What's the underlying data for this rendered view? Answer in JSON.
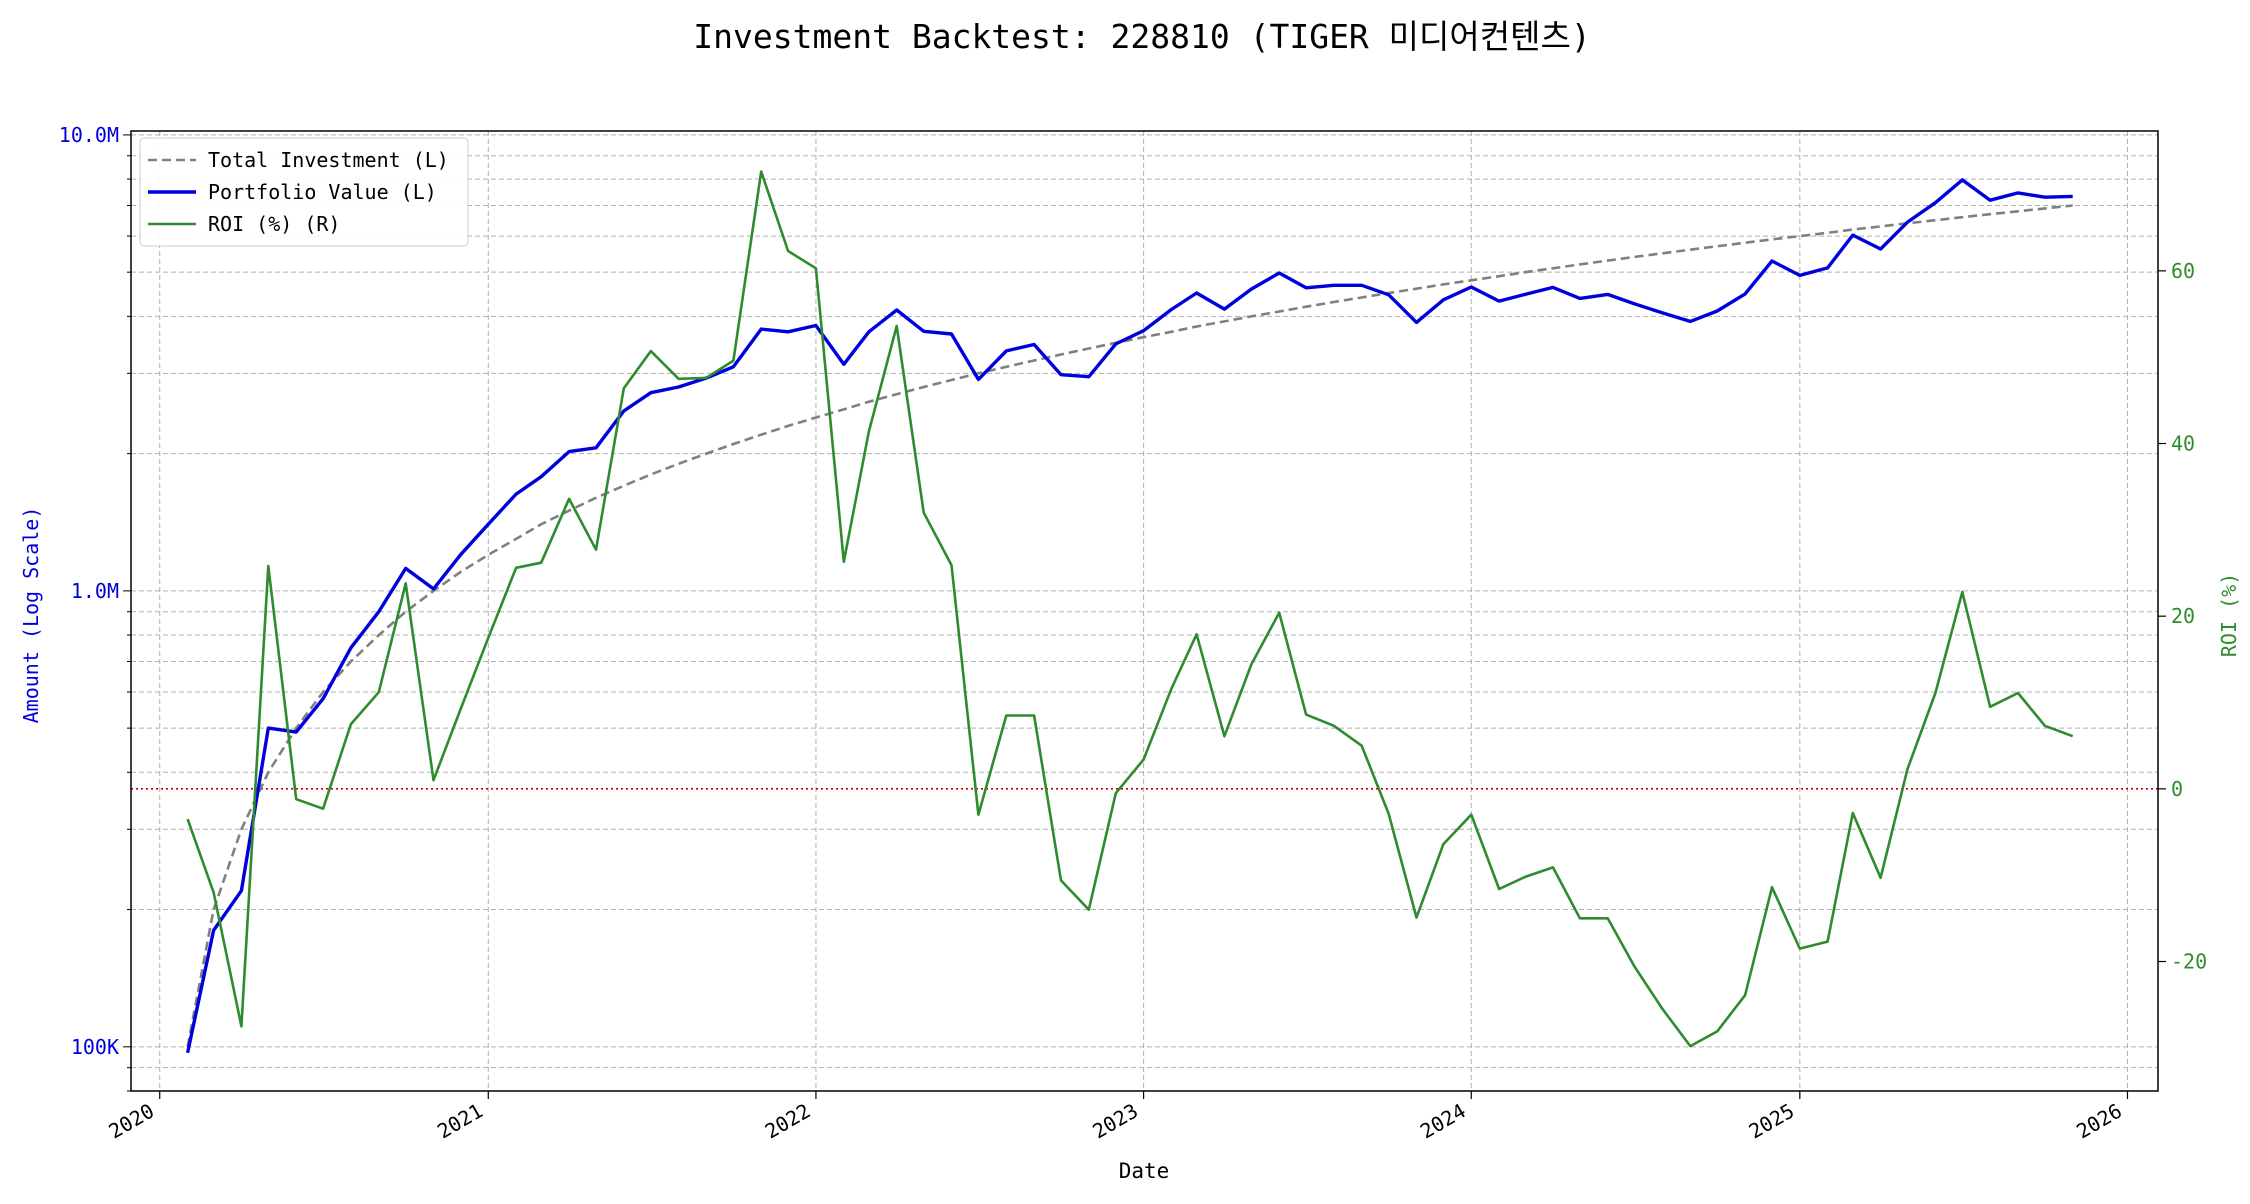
{
  "chart_data": {
    "type": "line",
    "title": "Investment Backtest: 228810 (TIGER 미디어컨텐츠)",
    "xlabel": "Date",
    "ylabel_left": "Amount (Log Scale)",
    "ylabel_right": "ROI (%)",
    "left_scale": "log",
    "left_ylim": [
      80000,
      10200000
    ],
    "right_ylim": [
      -35,
      76.2
    ],
    "xlim": [
      "2019-11-30",
      "2026-02-04"
    ],
    "x_ticks": [
      "2020",
      "2021",
      "2022",
      "2023",
      "2024",
      "2025",
      "2026"
    ],
    "left_ticks": [
      "100K",
      "1.0M",
      "10.0M"
    ],
    "right_ticks": [
      "-20",
      "0",
      "20",
      "40",
      "60"
    ],
    "grid": true,
    "legend_position": "top-left",
    "zero_line": {
      "value": 0,
      "axis": "right",
      "color": "#c00000",
      "style": "dotted"
    },
    "x": [
      "2020-02",
      "2020-03",
      "2020-04",
      "2020-05",
      "2020-06",
      "2020-07",
      "2020-08",
      "2020-09",
      "2020-10",
      "2020-11",
      "2020-12",
      "2021-01",
      "2021-02",
      "2021-03",
      "2021-04",
      "2021-05",
      "2021-06",
      "2021-07",
      "2021-08",
      "2021-09",
      "2021-10",
      "2021-11",
      "2021-12",
      "2022-01",
      "2022-02",
      "2022-03",
      "2022-04",
      "2022-05",
      "2022-06",
      "2022-07",
      "2022-08",
      "2022-09",
      "2022-10",
      "2022-11",
      "2022-12",
      "2023-01",
      "2023-02",
      "2023-03",
      "2023-04",
      "2023-05",
      "2023-06",
      "2023-07",
      "2023-08",
      "2023-09",
      "2023-10",
      "2023-11",
      "2023-12",
      "2024-01",
      "2024-02",
      "2024-03",
      "2024-04",
      "2024-05",
      "2024-06",
      "2024-07",
      "2024-08",
      "2024-09",
      "2024-10",
      "2024-11",
      "2024-12",
      "2025-01",
      "2025-02",
      "2025-03",
      "2025-04",
      "2025-05",
      "2025-06",
      "2025-07",
      "2025-08",
      "2025-09",
      "2025-10",
      "2025-11"
    ],
    "series": [
      {
        "name": "Total Investment (L)",
        "axis": "left",
        "color": "#808080",
        "style": "dashed",
        "values": [
          100000,
          200000,
          300000,
          400000,
          500000,
          600000,
          700000,
          800000,
          900000,
          1000000,
          1100000,
          1200000,
          1300000,
          1400000,
          1500000,
          1600000,
          1700000,
          1800000,
          1900000,
          2000000,
          2100000,
          2200000,
          2300000,
          2400000,
          2500000,
          2600000,
          2700000,
          2800000,
          2900000,
          3000000,
          3100000,
          3200000,
          3300000,
          3400000,
          3500000,
          3600000,
          3700000,
          3800000,
          3900000,
          4000000,
          4100000,
          4200000,
          4300000,
          4400000,
          4500000,
          4600000,
          4700000,
          4800000,
          4900000,
          5000000,
          5100000,
          5200000,
          5300000,
          5400000,
          5500000,
          5600000,
          5700000,
          5800000,
          5900000,
          6000000,
          6100000,
          6200000,
          6300000,
          6400000,
          6500000,
          6600000,
          6700000,
          6800000,
          6900000,
          7000000
        ]
      },
      {
        "name": "Portfolio Value (L)",
        "axis": "left",
        "color": "#0000dd",
        "style": "solid",
        "values": [
          97000,
          180000,
          220000,
          500000,
          490000,
          580000,
          750000,
          900000,
          1120000,
          1010000,
          1200000,
          1400000,
          1630000,
          1780000,
          2020000,
          2060000,
          2480000,
          2720000,
          2800000,
          2930000,
          3100000,
          3750000,
          3700000,
          3820000,
          3140000,
          3700000,
          4130000,
          3710000,
          3660000,
          2910000,
          3360000,
          3470000,
          2980000,
          2950000,
          3480000,
          3720000,
          4140000,
          4500000,
          4150000,
          4590000,
          4980000,
          4620000,
          4680000,
          4680000,
          4460000,
          3880000,
          4350000,
          4640000,
          4320000,
          4470000,
          4630000,
          4380000,
          4470000,
          4260000,
          4070000,
          3900000,
          4110000,
          4480000,
          5290000,
          4920000,
          5110000,
          6030000,
          5620000,
          6440000,
          7100000,
          7970000,
          7190000,
          7460000,
          7300000,
          7330000
        ]
      },
      {
        "name": "ROI (%) (R)",
        "axis": "right",
        "color": "#2e8b2e",
        "style": "solid",
        "values": [
          -3.5,
          -12,
          -27.5,
          25.8,
          -1.2,
          -2.3,
          7.5,
          11.2,
          23.8,
          1,
          9.2,
          17.5,
          25.6,
          26.2,
          33.6,
          27.7,
          46.4,
          50.7,
          47.5,
          47.6,
          49.6,
          71.5,
          62.3,
          60.3,
          26.3,
          41.4,
          53.6,
          32,
          25.9,
          -3,
          8.5,
          8.5,
          -10.6,
          -14,
          -0.5,
          3.4,
          11.6,
          17.9,
          6.1,
          14.4,
          20.4,
          8.6,
          7.3,
          5,
          -2.9,
          -14.9,
          -6.4,
          -3,
          -11.6,
          -10.2,
          -9.1,
          -15,
          -15,
          -20.6,
          -25.5,
          -29.8,
          -28.1,
          -23.9,
          -11.4,
          -18.5,
          -17.7,
          -2.8,
          -10.3,
          2.3,
          11.1,
          22.8,
          9.5,
          11.1,
          7.3,
          6.1
        ]
      }
    ]
  }
}
